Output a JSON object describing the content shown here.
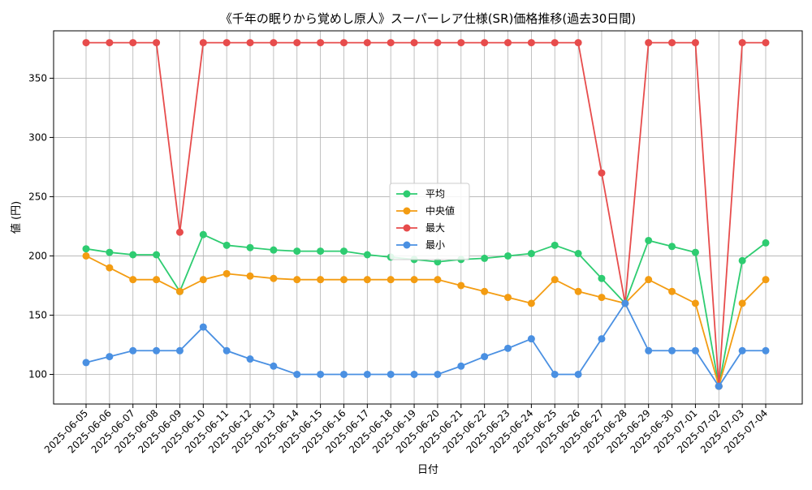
{
  "chart_data": {
    "type": "line",
    "title": "《千年の眠りから覚めし原人》スーパーレア仕様(SR)価格推移(過去30日間)",
    "xlabel": "日付",
    "ylabel": "値 (円)",
    "ylim": [
      75,
      390
    ],
    "yticks": [
      100,
      150,
      200,
      250,
      300,
      350
    ],
    "grid": true,
    "legend_position": "center",
    "categories": [
      "2025-06-05",
      "2025-06-06",
      "2025-06-07",
      "2025-06-08",
      "2025-06-09",
      "2025-06-10",
      "2025-06-11",
      "2025-06-12",
      "2025-06-13",
      "2025-06-14",
      "2025-06-15",
      "2025-06-16",
      "2025-06-17",
      "2025-06-18",
      "2025-06-19",
      "2025-06-20",
      "2025-06-21",
      "2025-06-22",
      "2025-06-23",
      "2025-06-24",
      "2025-06-25",
      "2025-06-26",
      "2025-06-27",
      "2025-06-28",
      "2025-06-29",
      "2025-06-30",
      "2025-07-01",
      "2025-07-02",
      "2025-07-03",
      "2025-07-04"
    ],
    "series": [
      {
        "name": "平均",
        "color": "#2ecc71",
        "values": [
          206,
          203,
          201,
          201,
          170,
          218,
          209,
          207,
          205,
          204,
          204,
          204,
          201,
          199,
          197,
          195,
          197,
          198,
          200,
          202,
          209,
          202,
          181,
          160,
          213,
          208,
          203,
          90,
          196,
          211
        ]
      },
      {
        "name": "中央値",
        "color": "#f39c12",
        "values": [
          200,
          190,
          180,
          180,
          170,
          180,
          185,
          183,
          181,
          180,
          180,
          180,
          180,
          180,
          180,
          180,
          175,
          170,
          165,
          160,
          180,
          170,
          165,
          160,
          180,
          170,
          160,
          90,
          160,
          180
        ]
      },
      {
        "name": "最大",
        "color": "#e74c4c",
        "values": [
          380,
          380,
          380,
          380,
          220,
          380,
          380,
          380,
          380,
          380,
          380,
          380,
          380,
          380,
          380,
          380,
          380,
          380,
          380,
          380,
          380,
          380,
          270,
          160,
          380,
          380,
          380,
          90,
          380,
          380
        ]
      },
      {
        "name": "最小",
        "color": "#4a90e2",
        "values": [
          110,
          115,
          120,
          120,
          120,
          140,
          120,
          113,
          107,
          100,
          100,
          100,
          100,
          100,
          100,
          100,
          107,
          115,
          122,
          130,
          100,
          100,
          130,
          160,
          120,
          120,
          120,
          90,
          120,
          120
        ]
      }
    ]
  }
}
